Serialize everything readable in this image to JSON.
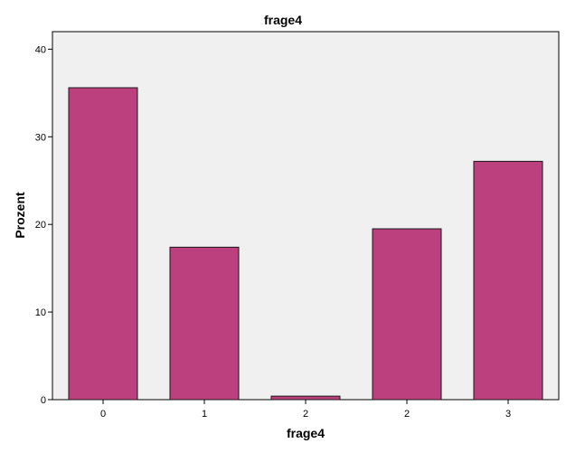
{
  "chart_data": {
    "type": "bar",
    "title": "frage4",
    "xlabel": "frage4",
    "ylabel": "Prozent",
    "categories": [
      "0",
      "1",
      "2",
      "2",
      "3"
    ],
    "values": [
      35.6,
      17.4,
      0.4,
      19.5,
      27.2
    ],
    "ylim": [
      0,
      42
    ],
    "yticks": [
      "0",
      "10",
      "20",
      "30",
      "40"
    ],
    "grid": false,
    "legend": "none",
    "colors": {
      "bar": "#bc3f7e",
      "bar_stroke": "#1a1a1a",
      "plot_background": "#f0f0f0",
      "axis": "#000000"
    }
  }
}
